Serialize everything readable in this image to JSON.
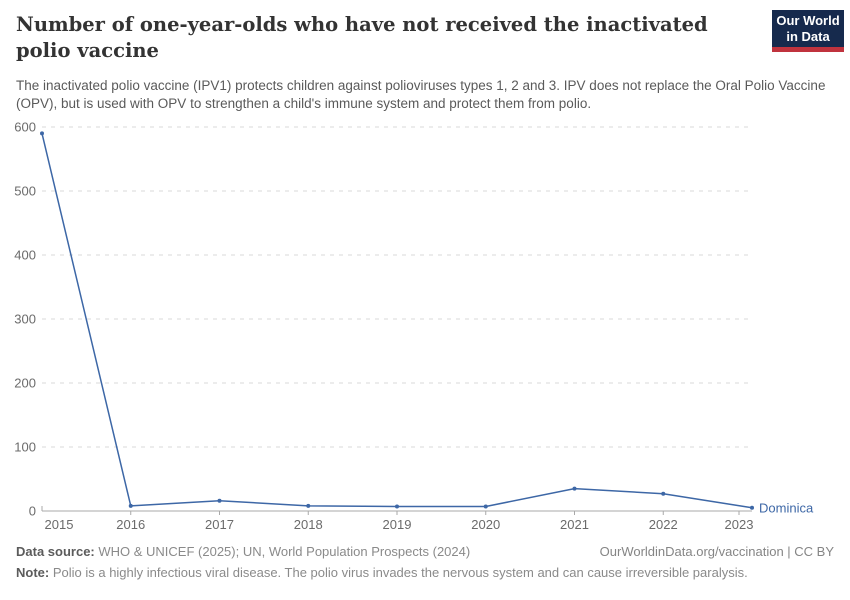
{
  "header": {
    "title": "Number of one-year-olds who have not received the inactivated polio vaccine",
    "subtitle": "The inactivated polio vaccine (IPV1) protects children against polioviruses types 1, 2 and 3. IPV does not replace the Oral Polio Vaccine (OPV), but is used with OPV to strengthen a child's immune system and protect them from polio.",
    "logo": {
      "line1": "Our World",
      "line2": "in Data"
    }
  },
  "chart_data": {
    "type": "line",
    "title": "Number of one-year-olds who have not received the inactivated polio vaccine",
    "x": [
      2015,
      2016,
      2017,
      2018,
      2019,
      2020,
      2021,
      2022,
      2023
    ],
    "series": [
      {
        "name": "Dominica",
        "values": [
          590,
          8,
          16,
          8,
          7,
          7,
          35,
          27,
          5
        ],
        "color": "#3d67a6"
      }
    ],
    "ylim": [
      0,
      600
    ],
    "yticks": [
      0,
      100,
      200,
      300,
      400,
      500,
      600
    ],
    "xlabel": "",
    "ylabel": "",
    "grid": "horizontal-dashed",
    "legend_position": "end-of-line-label"
  },
  "colors": {
    "line": "#3d67a6",
    "gridline": "#dadada",
    "axis": "#a9a9a9",
    "tick_text": "#6b6b6b"
  },
  "footer": {
    "source_label": "Data source:",
    "source_text": " WHO & UNICEF (2025); UN, World Population Prospects (2024)",
    "link_text": "OurWorldinData.org/vaccination | CC BY",
    "note_label": "Note:",
    "note_text": " Polio is a highly infectious viral disease. The polio virus invades the nervous system and can cause irreversible paralysis."
  }
}
